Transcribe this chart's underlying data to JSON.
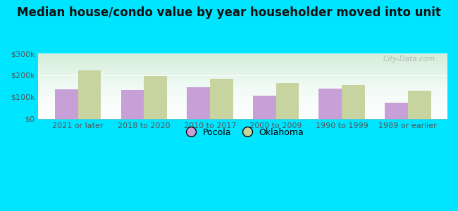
{
  "title": "Median house/condo value by year householder moved into unit",
  "categories": [
    "2021 or later",
    "2018 to 2020",
    "2010 to 2017",
    "2000 to 2009",
    "1990 to 1999",
    "1989 or earlier"
  ],
  "pocola_values": [
    135000,
    132000,
    145000,
    107000,
    138000,
    75000
  ],
  "oklahoma_values": [
    222000,
    198000,
    183000,
    163000,
    155000,
    128000
  ],
  "pocola_color": "#c8a0d8",
  "oklahoma_color": "#c8d4a0",
  "bg_outer": "#00e5ff",
  "ylim": [
    0,
    300000
  ],
  "yticks": [
    0,
    100000,
    200000,
    300000
  ],
  "ytick_labels": [
    "$0",
    "$100k",
    "$200k",
    "$300k"
  ],
  "legend_labels": [
    "Pocola",
    "Oklahoma"
  ],
  "watermark": "City-Data.com",
  "title_fontsize": 12,
  "tick_fontsize": 8,
  "legend_fontsize": 9,
  "bar_width": 0.35
}
